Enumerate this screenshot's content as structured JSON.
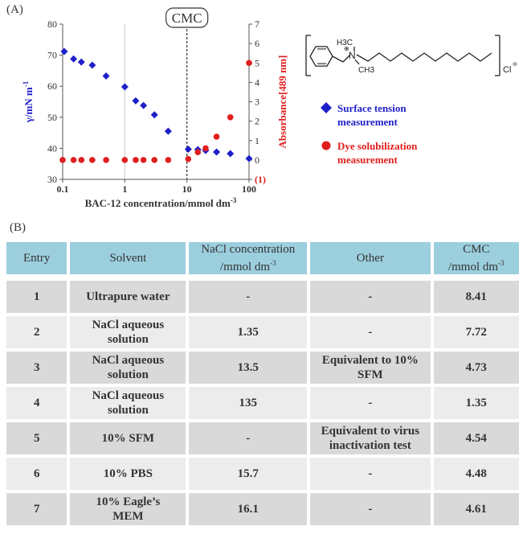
{
  "panel_a_label": "(A)",
  "panel_b_label": "(B)",
  "cmc_label": "CMC",
  "legend": [
    {
      "label": "Surface tension measurement",
      "color": "#1f1fc9",
      "marker": "diamond"
    },
    {
      "label": "Dye solubilization measurement",
      "color": "#e01e1e",
      "marker": "circle"
    }
  ],
  "structure": {
    "ch3_top": "H3C",
    "n": "N",
    "ch3_bottom": "CH3",
    "cl": "Cl"
  },
  "chart_data": {
    "type": "scatter",
    "x_scale": "log",
    "xlabel": "BAC-12 concentration/mmol dm-3",
    "xlim": [
      0.1,
      100
    ],
    "xticks": [
      "0.1",
      "1",
      "10",
      "100"
    ],
    "y_left_label": "γ/mN m-1",
    "y_left_lim": [
      30,
      80
    ],
    "y_left_ticks": [
      30,
      40,
      50,
      60,
      70,
      80
    ],
    "y_right_label": "Absorbance[489 nm]",
    "y_right_lim": [
      -1,
      7
    ],
    "y_right_ticks": [
      "(1)",
      "0",
      "1",
      "2",
      "3",
      "4",
      "5",
      "6",
      "7"
    ],
    "cmc_x": 10,
    "grid_x": [
      1,
      10
    ],
    "series": [
      {
        "name": "Surface tension measurement",
        "axis": "left",
        "color": "#1f1fc9",
        "marker": "diamond",
        "x": [
          0.106,
          0.15,
          0.2,
          0.3,
          0.5,
          1.0,
          1.5,
          2.0,
          3.0,
          5.0,
          10.5,
          15,
          20,
          30,
          50,
          100
        ],
        "y": [
          71.2,
          68.8,
          67.8,
          66.8,
          63.3,
          59.8,
          55.3,
          53.8,
          50.8,
          45.5,
          39.7,
          39.6,
          39.3,
          38.8,
          38.3,
          36.7
        ]
      },
      {
        "name": "Dye solubilization measurement",
        "axis": "right",
        "color": "#e01e1e",
        "marker": "circle",
        "x": [
          0.1,
          0.15,
          0.2,
          0.3,
          0.5,
          1.0,
          1.5,
          2.0,
          3.0,
          5.0,
          10.5,
          15,
          20,
          30,
          50,
          100
        ],
        "y": [
          0.0,
          0.0,
          0.0,
          0.0,
          0.0,
          0.0,
          0.0,
          0.0,
          0.0,
          0.0,
          0.05,
          0.4,
          0.6,
          1.2,
          2.2,
          5.0
        ]
      }
    ]
  },
  "table": {
    "headers": [
      "Entry",
      "Solvent",
      "NaCl concentration\n/mmol dm-3",
      "Other",
      "CMC\n/mmol dm-3"
    ],
    "rows": [
      [
        "1",
        "Ultrapure water",
        "-",
        "-",
        "8.41"
      ],
      [
        "2",
        "NaCl aqueous\nsolution",
        "1.35",
        "-",
        "7.72"
      ],
      [
        "3",
        "NaCl aqueous\nsolution",
        "13.5",
        "Equivalent to 10%\nSFM",
        "4.73"
      ],
      [
        "4",
        "NaCl aqueous\nsolution",
        "135",
        "-",
        "1.35"
      ],
      [
        "5",
        "10% SFM",
        "-",
        "Equivalent to virus\ninactivation test",
        "4.54"
      ],
      [
        "6",
        "10% PBS",
        "15.7",
        "-",
        "4.48"
      ],
      [
        "7",
        "10% Eagle’s\nMEM",
        "16.1",
        "-",
        "4.61"
      ]
    ]
  }
}
